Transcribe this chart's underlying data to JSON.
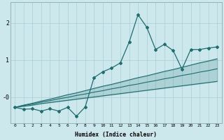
{
  "xlabel": "Humidex (Indice chaleur)",
  "background_color": "#cce8ed",
  "grid_color": "#aacdd4",
  "line_color": "#1e6e6e",
  "x_data": [
    0,
    1,
    2,
    3,
    4,
    5,
    6,
    7,
    8,
    9,
    10,
    11,
    12,
    13,
    14,
    15,
    16,
    17,
    18,
    19,
    20,
    21,
    22,
    23
  ],
  "y_main": [
    -0.28,
    -0.33,
    -0.32,
    -0.38,
    -0.32,
    -0.38,
    -0.28,
    -0.52,
    -0.27,
    0.52,
    0.68,
    0.78,
    0.92,
    1.48,
    2.22,
    1.88,
    1.28,
    1.42,
    1.25,
    0.75,
    1.28,
    1.28,
    1.32,
    1.35
  ],
  "y_upper": [
    -0.28,
    -0.22,
    -0.17,
    -0.11,
    -0.06,
    0.0,
    0.06,
    0.11,
    0.17,
    0.23,
    0.29,
    0.34,
    0.4,
    0.46,
    0.52,
    0.57,
    0.63,
    0.69,
    0.74,
    0.8,
    0.86,
    0.92,
    0.97,
    1.03
  ],
  "y_mid": [
    -0.28,
    -0.23,
    -0.19,
    -0.14,
    -0.1,
    -0.05,
    -0.01,
    0.04,
    0.08,
    0.13,
    0.17,
    0.22,
    0.26,
    0.31,
    0.35,
    0.4,
    0.44,
    0.49,
    0.53,
    0.58,
    0.62,
    0.67,
    0.71,
    0.76
  ],
  "y_lower": [
    -0.28,
    -0.25,
    -0.22,
    -0.18,
    -0.15,
    -0.12,
    -0.09,
    -0.06,
    -0.03,
    0.0,
    0.03,
    0.06,
    0.09,
    0.12,
    0.15,
    0.18,
    0.21,
    0.24,
    0.27,
    0.3,
    0.33,
    0.36,
    0.39,
    0.42
  ],
  "ylim": [
    -0.7,
    2.55
  ],
  "xlim": [
    -0.5,
    23.5
  ],
  "xticks": [
    0,
    1,
    2,
    3,
    4,
    5,
    6,
    7,
    8,
    9,
    10,
    11,
    12,
    13,
    14,
    15,
    16,
    17,
    18,
    19,
    20,
    21,
    22,
    23
  ],
  "yticks": [
    0.0,
    1.0,
    2.0
  ],
  "ytick_labels": [
    "-0",
    "1",
    "2"
  ]
}
